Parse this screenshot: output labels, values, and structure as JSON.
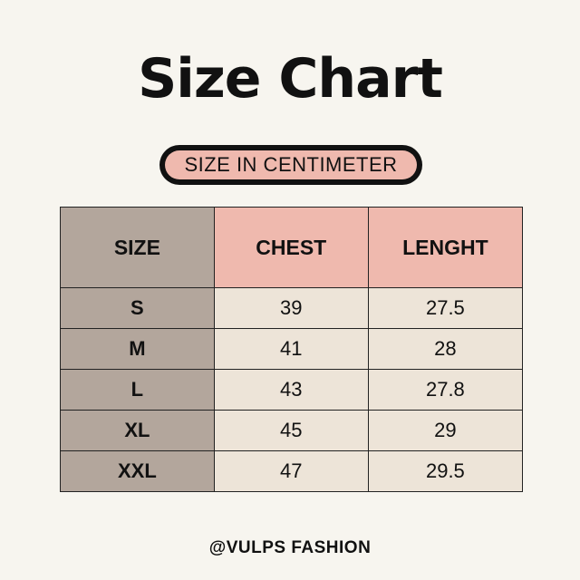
{
  "header": {
    "title": "Size Chart",
    "badge": "SIZE IN CENTIMETER"
  },
  "table": {
    "columns": [
      "SIZE",
      "CHEST",
      "LENGHT"
    ],
    "rows": [
      [
        "S",
        "39",
        "27.5"
      ],
      [
        "M",
        "41",
        "28"
      ],
      [
        "L",
        "43",
        "27.8"
      ],
      [
        "XL",
        "45",
        "29"
      ],
      [
        "XXL",
        "47",
        "29.5"
      ]
    ]
  },
  "footer": "@VULPS FASHION"
}
